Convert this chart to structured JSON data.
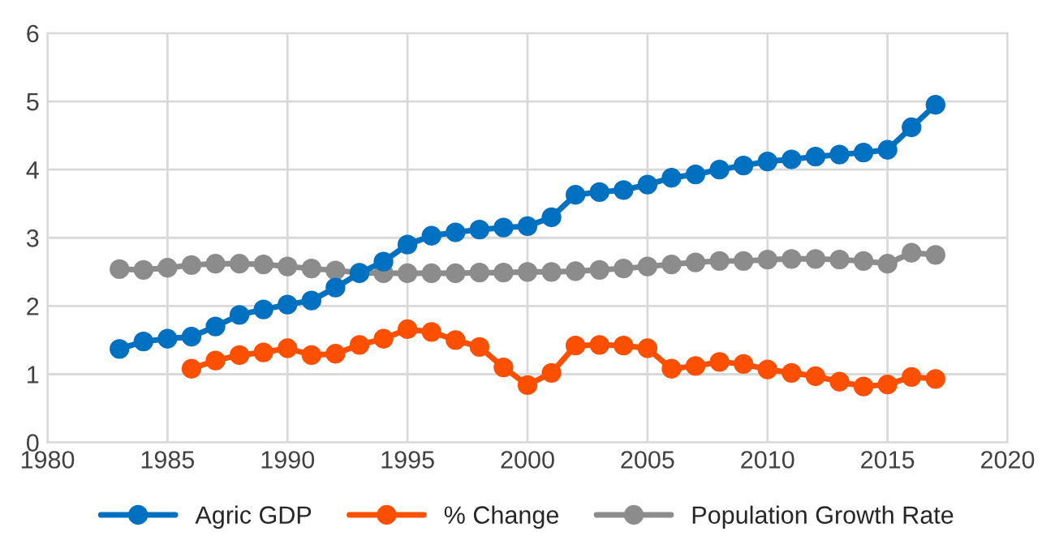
{
  "chart_data": {
    "type": "line",
    "x": [
      1983,
      1984,
      1985,
      1986,
      1987,
      1988,
      1989,
      1990,
      1991,
      1992,
      1993,
      1994,
      1995,
      1996,
      1997,
      1998,
      1999,
      2000,
      2001,
      2002,
      2003,
      2004,
      2005,
      2006,
      2007,
      2008,
      2009,
      2010,
      2011,
      2012,
      2013,
      2014,
      2015,
      2016,
      2017
    ],
    "series": [
      {
        "name": "Agric GDP",
        "color": "#0070c0",
        "values": [
          1.37,
          1.48,
          1.52,
          1.55,
          1.7,
          1.87,
          1.95,
          2.02,
          2.08,
          2.27,
          2.48,
          2.65,
          2.9,
          3.03,
          3.08,
          3.12,
          3.15,
          3.17,
          3.3,
          3.63,
          3.67,
          3.7,
          3.78,
          3.88,
          3.93,
          4.0,
          4.06,
          4.12,
          4.15,
          4.19,
          4.22,
          4.25,
          4.29,
          4.62,
          4.95
        ]
      },
      {
        "name": "% Change",
        "color": "#fc4f00",
        "values": [
          null,
          null,
          null,
          1.08,
          1.2,
          1.28,
          1.32,
          1.38,
          1.28,
          1.3,
          1.43,
          1.52,
          1.66,
          1.62,
          1.5,
          1.4,
          1.1,
          0.84,
          1.02,
          1.42,
          1.43,
          1.42,
          1.38,
          1.08,
          1.12,
          1.18,
          1.15,
          1.07,
          1.02,
          0.97,
          0.89,
          0.82,
          0.85,
          0.96,
          0.93
        ]
      },
      {
        "name": "Population Growth Rate",
        "color": "#8c8c8c",
        "values": [
          2.54,
          2.53,
          2.56,
          2.6,
          2.62,
          2.62,
          2.61,
          2.58,
          2.55,
          2.52,
          2.49,
          2.48,
          2.48,
          2.48,
          2.48,
          2.49,
          2.49,
          2.5,
          2.5,
          2.51,
          2.53,
          2.55,
          2.58,
          2.61,
          2.64,
          2.66,
          2.66,
          2.68,
          2.69,
          2.69,
          2.68,
          2.66,
          2.62,
          2.78,
          2.75
        ]
      }
    ],
    "xlim": [
      1980,
      2020
    ],
    "xticks": [
      1980,
      1985,
      1990,
      1995,
      2000,
      2005,
      2010,
      2015,
      2020
    ],
    "ylim": [
      0,
      6
    ],
    "yticks": [
      0,
      1,
      2,
      3,
      4,
      5,
      6
    ],
    "grid": true,
    "legend": "bottom",
    "marker": "circle",
    "line_style": "solid"
  }
}
